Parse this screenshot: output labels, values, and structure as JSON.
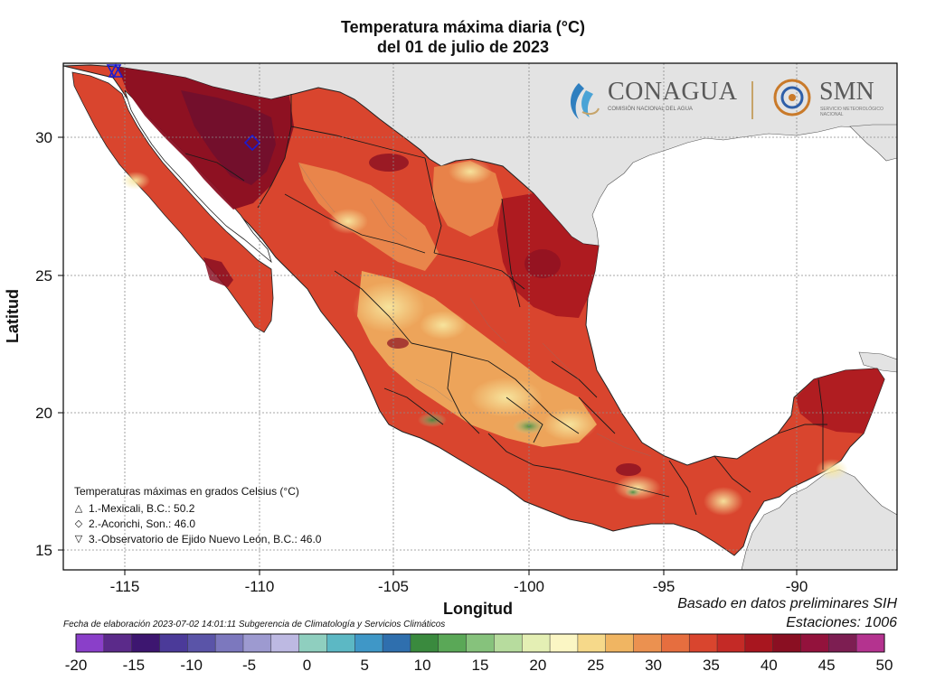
{
  "title": {
    "line1": "Temperatura máxima diaria (°C)",
    "line2": "del 01 de julio de 2023"
  },
  "axes": {
    "ylabel": "Latitud",
    "xlabel": "Longitud",
    "lon_ticks": [
      "-115",
      "-110",
      "-105",
      "-100",
      "-95",
      "-90"
    ],
    "lat_ticks": [
      "30",
      "25",
      "20",
      "15"
    ]
  },
  "logos": {
    "conagua_name": "CONAGUA",
    "conagua_sub": "COMISIÓN NACIONAL DEL AGUA",
    "smn_name": "SMN",
    "smn_sub": "SERVICIO METEOROLÓGICO NACIONAL"
  },
  "legend": {
    "title": "Temperaturas máximas en grados Celsius (°C)",
    "items": [
      {
        "symbol": "△",
        "text": "1.-Mexicali, B.C.: 50.2"
      },
      {
        "symbol": "◇",
        "text": "2.-Aconchi, Son.: 46.0"
      },
      {
        "symbol": "▽",
        "text": "3.-Observatorio de Ejido Nuevo León, B.C.: 46.0"
      }
    ]
  },
  "footer": {
    "basado": "Basado en datos preliminares SIH",
    "estaciones": "Estaciones:  1006",
    "fecha": "Fecha de elaboración 2023-07-02 14:01:11 Subgerencia de Climatología y Servicios Climáticos"
  },
  "colorbar": {
    "labels": [
      "-20",
      "-15",
      "-10",
      "-5",
      "0",
      "5",
      "10",
      "15",
      "20",
      "25",
      "30",
      "35",
      "40",
      "45",
      "50"
    ],
    "colors": [
      "#8a3fc9",
      "#5b2a8a",
      "#3d1670",
      "#4b3a99",
      "#5a54a8",
      "#7c78be",
      "#9d9ad0",
      "#bdb9e2",
      "#8fcfbf",
      "#5cb8c4",
      "#3f97c7",
      "#2f6fae",
      "#3a8a3e",
      "#5aa857",
      "#86c27c",
      "#b7dc9e",
      "#e4efb4",
      "#fbf6c4",
      "#f6d98a",
      "#f0b562",
      "#eb9150",
      "#e66e3f",
      "#d9452e",
      "#c42a26",
      "#a8161f",
      "#8a0f22",
      "#93123c",
      "#7d1e52",
      "#b4338f"
    ]
  }
}
